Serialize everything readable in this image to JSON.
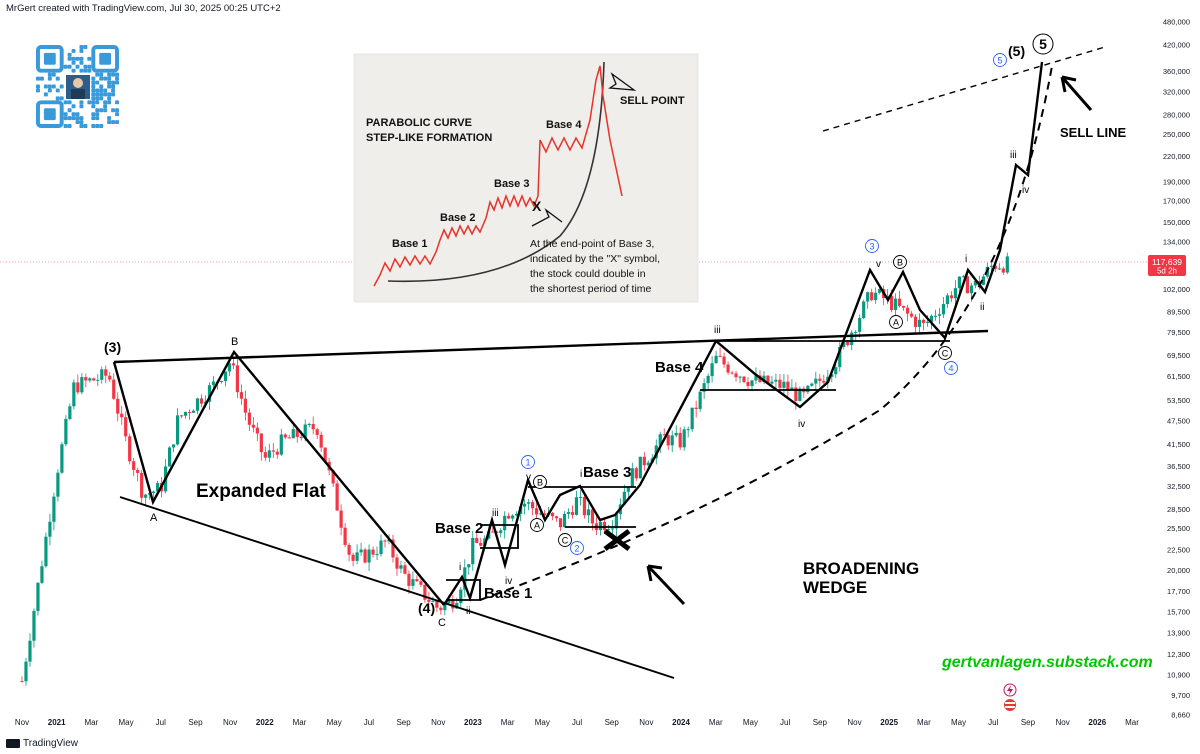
{
  "header": {
    "credit": "MrGert created with TradingView.com, Jul 30, 2025 00:25 UTC+2"
  },
  "footer": {
    "brand": "TradingView"
  },
  "colors": {
    "candle_up": "#089981",
    "candle_down": "#f23645",
    "price_badge": "#f23645",
    "accent_circle": "#2962ff",
    "website": "#00c800",
    "inset_curve": "#e8322a"
  },
  "price_badge": {
    "price": "117,639",
    "time_left": "5d 2h"
  },
  "chart_data": {
    "type": "candlestick",
    "title": "",
    "xlabel": "",
    "ylabel": "",
    "log_scale": true,
    "ylim": [
      8000,
      490000
    ],
    "x_ticks": [
      "Nov",
      "2021",
      "Mar",
      "May",
      "Jul",
      "Sep",
      "Nov",
      "2022",
      "Mar",
      "May",
      "Jul",
      "Sep",
      "Nov",
      "2023",
      "Mar",
      "May",
      "Jul",
      "Sep",
      "Nov",
      "2024",
      "Mar",
      "May",
      "Jul",
      "Sep",
      "Nov",
      "2025",
      "Mar",
      "May",
      "Jul",
      "Sep",
      "Nov",
      "2026",
      "Mar"
    ],
    "y_ticks": [
      480000,
      420000,
      360000,
      320000,
      280000,
      250000,
      220000,
      190000,
      170000,
      150000,
      134000,
      117639,
      102000,
      89500,
      79500,
      69500,
      61500,
      53500,
      47500,
      41500,
      36500,
      32500,
      28500,
      25500,
      22500,
      20000,
      17700,
      15700,
      13900,
      12300,
      10900,
      9700,
      8660
    ],
    "y_tick_labels": [
      "480,000",
      "420,000",
      "360,000",
      "320,000",
      "280,000",
      "250,000",
      "220,000",
      "190,000",
      "170,000",
      "150,000",
      "134,000",
      "117,639",
      "102,000",
      "89,500",
      "79,500",
      "69,500",
      "61,500",
      "53,500",
      "47,500",
      "41,500",
      "36,500",
      "32,500",
      "28,500",
      "25,500",
      "22,500",
      "20,000",
      "17,700",
      "15,700",
      "13,900",
      "12,300",
      "10,900",
      "9,700",
      "8,660"
    ],
    "path_points": [
      [
        "2020-11",
        10500
      ],
      [
        "2021-01",
        35000
      ],
      [
        "2021-02",
        58000
      ],
      [
        "2021-04",
        62000
      ],
      [
        "2021-05",
        42000
      ],
      [
        "2021-06",
        31000
      ],
      [
        "2021-07",
        32000
      ],
      [
        "2021-08",
        48000
      ],
      [
        "2021-10",
        58000
      ],
      [
        "2021-11",
        67000
      ],
      [
        "2021-12",
        48000
      ],
      [
        "2022-01",
        38000
      ],
      [
        "2022-02",
        42000
      ],
      [
        "2022-04",
        46000
      ],
      [
        "2022-05",
        31000
      ],
      [
        "2022-06",
        21000
      ],
      [
        "2022-07",
        22000
      ],
      [
        "2022-08",
        23500
      ],
      [
        "2022-09",
        19500
      ],
      [
        "2022-11",
        16000
      ],
      [
        "2022-12",
        17000
      ],
      [
        "2023-01",
        23000
      ],
      [
        "2023-02",
        24000
      ],
      [
        "2023-03",
        28000
      ],
      [
        "2023-04",
        29500
      ],
      [
        "2023-06",
        26000
      ],
      [
        "2023-07",
        30000
      ],
      [
        "2023-08",
        26000
      ],
      [
        "2023-09",
        26500
      ],
      [
        "2023-10",
        34000
      ],
      [
        "2023-12",
        43000
      ],
      [
        "2024-01",
        42000
      ],
      [
        "2024-03",
        68000
      ],
      [
        "2024-05",
        60000
      ],
      [
        "2024-07",
        58000
      ],
      [
        "2024-08",
        54000
      ],
      [
        "2024-09",
        60000
      ],
      [
        "2024-10",
        68000
      ],
      [
        "2024-12",
        100000
      ],
      [
        "2025-01",
        95000
      ],
      [
        "2025-02",
        88000
      ],
      [
        "2025-03",
        82000
      ],
      [
        "2025-05",
        105000
      ],
      [
        "2025-06",
        104000
      ],
      [
        "2025-07",
        117639
      ]
    ],
    "inset": {
      "title_line1": "PARABOLIC CURVE",
      "title_line2": "STEP-LIKE FORMATION",
      "base_labels": [
        "Base 1",
        "Base 2",
        "Base 3",
        "Base 4"
      ],
      "sell_point": "SELL POINT",
      "x_mark": "X",
      "caption_lines": [
        "At the end-point of Base 3,",
        "indicated by the \"X\" symbol,",
        "the stock could double in",
        "the shortest period of time"
      ]
    },
    "annotations": {
      "wave_3": "(3)",
      "B": "B",
      "A": "A",
      "C": "C",
      "wave_4": "(4)",
      "expanded_flat": "Expanded Flat",
      "base_1": "Base 1",
      "base_2": "Base 2",
      "base_3": "Base 3",
      "base_4": "Base 4",
      "circle_1": "1",
      "circle_2": "2",
      "circle_3": "3",
      "circle_4": "4",
      "circle_5": "5",
      "circle_5_big": "5",
      "circle_A": "A",
      "circle_B": "B",
      "circle_C": "C",
      "circle_A2": "A",
      "circle_B2": "B",
      "circle_C2": "C",
      "roman_i": "i",
      "roman_ii": "ii",
      "roman_iii": "iii",
      "roman_iv": "iv",
      "roman_v": "v",
      "roman_i2": "i",
      "roman_iii2": "iii",
      "roman_iv2": "iv",
      "roman_v2": "v",
      "roman_i3": "i",
      "roman_ii3": "ii",
      "roman_iii3": "iii",
      "roman_iv3": "iv",
      "wave_5": "(5)",
      "broadening_line1": "BROADENING",
      "broadening_line2": "WEDGE",
      "sell_line": "SELL LINE",
      "website": "gertvanlagen.substack.com"
    }
  }
}
